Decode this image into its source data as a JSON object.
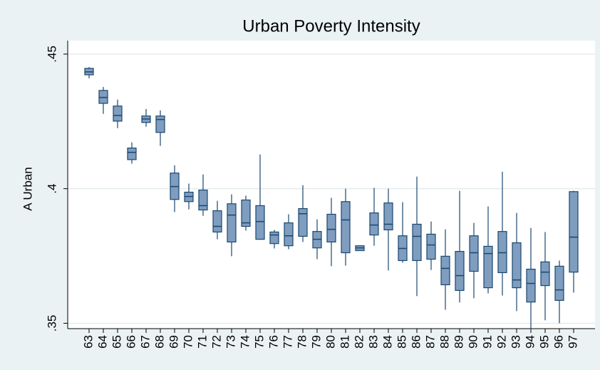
{
  "chart_data": {
    "type": "box",
    "title": "Urban Poverty Intensity",
    "y_label": "A Urban",
    "categories": [
      "63",
      "64",
      "65",
      "66",
      "67",
      "68",
      "69",
      "70",
      "71",
      "72",
      "73",
      "74",
      "75",
      "76",
      "77",
      "78",
      "79",
      "80",
      "81",
      "82",
      "83",
      "84",
      "85",
      "86",
      "87",
      "88",
      "89",
      "90",
      "91",
      "92",
      "93",
      "94",
      "95",
      "96",
      "97"
    ],
    "whisker_low": [
      0.441,
      0.4278,
      0.4225,
      0.4093,
      0.423,
      0.4159,
      0.3913,
      0.3923,
      0.3899,
      0.3812,
      0.3749,
      0.3844,
      0.381,
      0.3778,
      0.3775,
      0.3802,
      0.3738,
      0.3712,
      0.3714,
      0.377,
      0.3788,
      0.3696,
      0.3725,
      0.3601,
      0.3698,
      0.355,
      0.3577,
      0.3593,
      0.3611,
      0.3603,
      0.3545,
      0.3476,
      0.3511,
      0.35,
      0.3614
    ],
    "q1": [
      0.4423,
      0.4317,
      0.4251,
      0.4108,
      0.4246,
      0.4209,
      0.396,
      0.3952,
      0.3921,
      0.3839,
      0.3802,
      0.386,
      0.3812,
      0.3796,
      0.3788,
      0.3823,
      0.378,
      0.3802,
      0.3762,
      0.377,
      0.3828,
      0.3847,
      0.3733,
      0.3733,
      0.3738,
      0.3643,
      0.3622,
      0.3693,
      0.3632,
      0.3688,
      0.3632,
      0.3579,
      0.364,
      0.3585,
      0.369
    ],
    "median": [
      0.4434,
      0.4339,
      0.4272,
      0.4135,
      0.4259,
      0.4257,
      0.4008,
      0.3971,
      0.3937,
      0.386,
      0.3902,
      0.3873,
      0.3878,
      0.3828,
      0.3825,
      0.3907,
      0.3812,
      0.3849,
      0.3884,
      0.378,
      0.3865,
      0.3868,
      0.3778,
      0.3823,
      0.3791,
      0.3704,
      0.3677,
      0.3762,
      0.3759,
      0.3762,
      0.3661,
      0.3648,
      0.369,
      0.3624,
      0.382
    ],
    "q3": [
      0.4447,
      0.4365,
      0.4307,
      0.4151,
      0.427,
      0.427,
      0.4058,
      0.3987,
      0.3995,
      0.3918,
      0.3944,
      0.3958,
      0.3937,
      0.3839,
      0.3873,
      0.3926,
      0.3841,
      0.3905,
      0.3952,
      0.3788,
      0.391,
      0.3947,
      0.3825,
      0.3868,
      0.3831,
      0.3749,
      0.3767,
      0.3825,
      0.3786,
      0.3841,
      0.3799,
      0.3701,
      0.3728,
      0.3712,
      0.3989
    ],
    "whisker_high": [
      0.4452,
      0.4378,
      0.4331,
      0.4172,
      0.4296,
      0.4291,
      0.4087,
      0.4019,
      0.4053,
      0.3955,
      0.3979,
      0.3974,
      0.4127,
      0.3847,
      0.3905,
      0.4013,
      0.3886,
      0.3966,
      0.4,
      0.3788,
      0.4003,
      0.4,
      0.395,
      0.4045,
      0.3878,
      0.3849,
      0.3992,
      0.3873,
      0.3934,
      0.4063,
      0.391,
      0.3854,
      0.3839,
      0.3733,
      0.3992
    ],
    "box_color": "#7f9dbf",
    "line_color": "#1a476f",
    "ylim": [
      0.348,
      0.455
    ],
    "yticks": [
      {
        "value": 0.35,
        "label": ".35"
      },
      {
        "value": 0.4,
        "label": ".4"
      },
      {
        "value": 0.45,
        "label": ".45"
      }
    ],
    "grid": true
  }
}
